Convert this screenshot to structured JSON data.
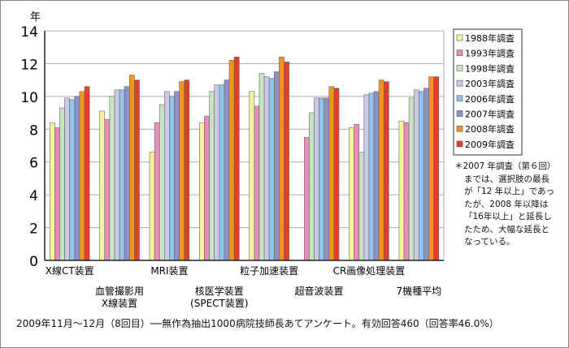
{
  "chart_data": {
    "type": "bar",
    "ylabel": "年",
    "ylim": [
      0,
      14
    ],
    "yticks": [
      0,
      2,
      4,
      6,
      8,
      10,
      12,
      14
    ],
    "grid": true,
    "legend_position": "right",
    "categories": [
      [
        "X線CT装置"
      ],
      [
        "血管撮影用",
        "X線装置"
      ],
      [
        "MRI装置"
      ],
      [
        "核医学装置",
        "(SPECT装置)"
      ],
      [
        "粒子加速装置"
      ],
      [
        "超音波装置"
      ],
      [
        "CR画像処理装置"
      ],
      [
        "7機種平均"
      ]
    ],
    "series": [
      {
        "name": "1988年調査",
        "color": "#f5f29c",
        "values": [
          8.4,
          9.1,
          6.6,
          8.4,
          10.3,
          null,
          8.1,
          8.5
        ]
      },
      {
        "name": "1993年調査",
        "color": "#ea8cbb",
        "values": [
          8.1,
          8.6,
          8.4,
          8.8,
          9.4,
          7.5,
          8.3,
          8.4
        ]
      },
      {
        "name": "1998年調査",
        "color": "#c6e4c0",
        "values": [
          9.3,
          10.0,
          9.5,
          10.3,
          11.4,
          9.0,
          6.6,
          9.9
        ]
      },
      {
        "name": "2003年調査",
        "color": "#ccc9e8",
        "values": [
          9.9,
          10.4,
          10.3,
          10.7,
          11.2,
          9.9,
          10.1,
          10.4
        ]
      },
      {
        "name": "2006年調査",
        "color": "#8fc4ec",
        "values": [
          9.8,
          10.4,
          10.0,
          10.7,
          11.1,
          9.9,
          10.2,
          10.3
        ]
      },
      {
        "name": "2007年調査",
        "color": "#8e8fc8",
        "values": [
          10.0,
          10.6,
          10.3,
          11.0,
          11.5,
          9.9,
          10.3,
          10.5
        ]
      },
      {
        "name": "2008年調査",
        "color": "#f19420",
        "values": [
          10.3,
          11.3,
          10.9,
          12.2,
          12.4,
          10.6,
          11.0,
          11.2
        ]
      },
      {
        "name": "2009年調査",
        "color": "#e43d29",
        "values": [
          10.6,
          11.0,
          11.0,
          12.4,
          12.1,
          10.5,
          10.9,
          11.2
        ]
      }
    ]
  },
  "note": [
    "＊2007 年調査（第６回）",
    "までは、選択肢の最長",
    "が「12 年以上」であっ",
    "たが、2008 年以降は",
    "「16年以上」と延長し",
    "たため、大幅な延長と",
    "なっている。"
  ],
  "caption": "2009年11月～12月（8回目）──無作為抽出1000病院技師長あてアンケート。有効回答460（回答率46.0%）"
}
